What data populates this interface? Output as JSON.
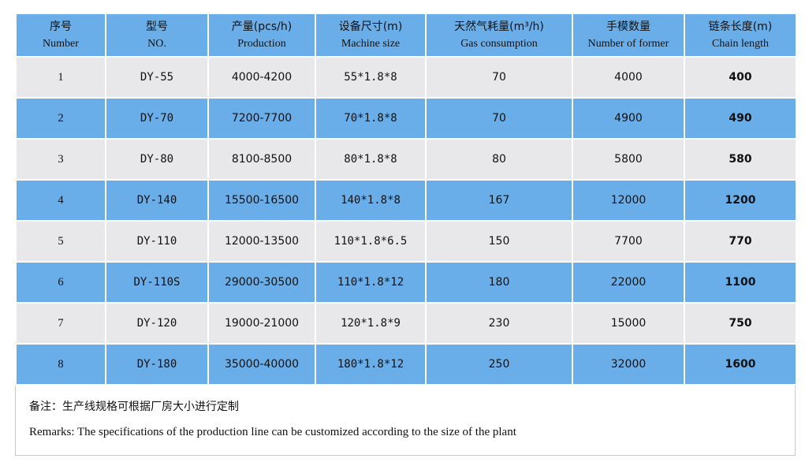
{
  "headers": [
    {
      "zh": "序号",
      "en": "Number"
    },
    {
      "zh": "型号",
      "en": "NO."
    },
    {
      "zh": "产量(pcs/h)",
      "en": "Production"
    },
    {
      "zh": "设备尺寸(m)",
      "en": "Machine size"
    },
    {
      "zh": "天然气耗量(m³/h)",
      "en": "Gas consumption"
    },
    {
      "zh": "手模数量",
      "en": "Number of former"
    },
    {
      "zh": "链条长度(m)",
      "en": "Chain length"
    }
  ],
  "rows": [
    {
      "num": "1",
      "model": "DY-55",
      "production": "4000-4200",
      "size": "55*1.8*8",
      "gas": "70",
      "formers": "4000",
      "chain": "400"
    },
    {
      "num": "2",
      "model": "DY-70",
      "production": "7200-7700",
      "size": "70*1.8*8",
      "gas": "70",
      "formers": "4900",
      "chain": "490"
    },
    {
      "num": "3",
      "model": "DY-80",
      "production": "8100-8500",
      "size": "80*1.8*8",
      "gas": "80",
      "formers": "5800",
      "chain": "580"
    },
    {
      "num": "4",
      "model": "DY-140",
      "production": "15500-16500",
      "size": "140*1.8*8",
      "gas": "167",
      "formers": "12000",
      "chain": "1200"
    },
    {
      "num": "5",
      "model": "DY-110",
      "production": "12000-13500",
      "size": "110*1.8*6.5",
      "gas": "150",
      "formers": "7700",
      "chain": "770"
    },
    {
      "num": "6",
      "model": "DY-110S",
      "production": "29000-30500",
      "size": "110*1.8*12",
      "gas": "180",
      "formers": "22000",
      "chain": "1100"
    },
    {
      "num": "7",
      "model": "DY-120",
      "production": "19000-21000",
      "size": "120*1.8*9",
      "gas": "230",
      "formers": "15000",
      "chain": "750"
    },
    {
      "num": "8",
      "model": "DY-180",
      "production": "35000-40000",
      "size": "180*1.8*12",
      "gas": "250",
      "formers": "32000",
      "chain": "1600"
    }
  ],
  "remarks": {
    "zh": "备注：生产线规格可根据厂房大小进行定制",
    "en": "Remarks: The specifications of the production line can be customized according to the size of the plant"
  },
  "colors": {
    "header_bg": "#6aaee9",
    "row_light": "#e8e8ea",
    "row_blue": "#6aaee9"
  }
}
